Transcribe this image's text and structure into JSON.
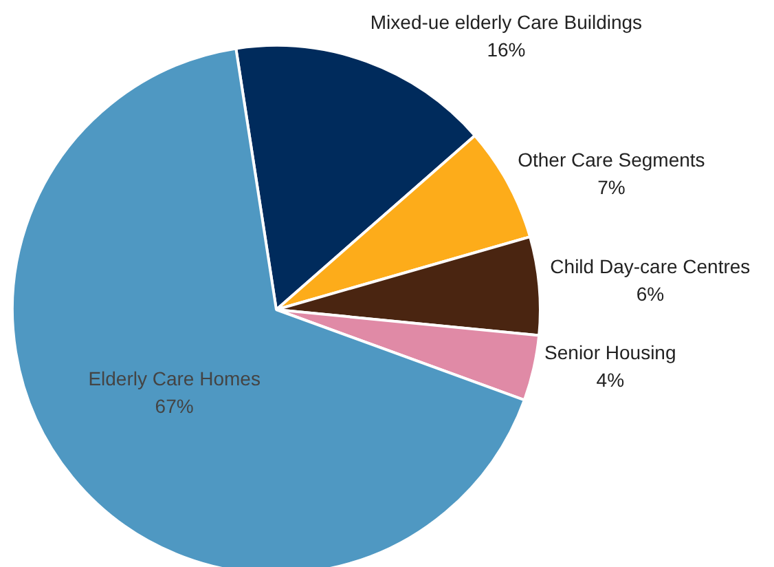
{
  "chart_data": {
    "type": "pie",
    "categories": [
      "Mixed-ue elderly Care Buildings",
      "Other Care Segments",
      "Child Day-care Centres",
      "Senior Housing",
      "Elderly Care Homes"
    ],
    "values": [
      16,
      7,
      6,
      4,
      67
    ],
    "colors": [
      "#002b5c",
      "#fdac1a",
      "#4a2511",
      "#e08aa6",
      "#4f98c2"
    ],
    "value_labels": [
      "16%",
      "7%",
      "6%",
      "4%",
      "67%"
    ],
    "legend": false
  }
}
